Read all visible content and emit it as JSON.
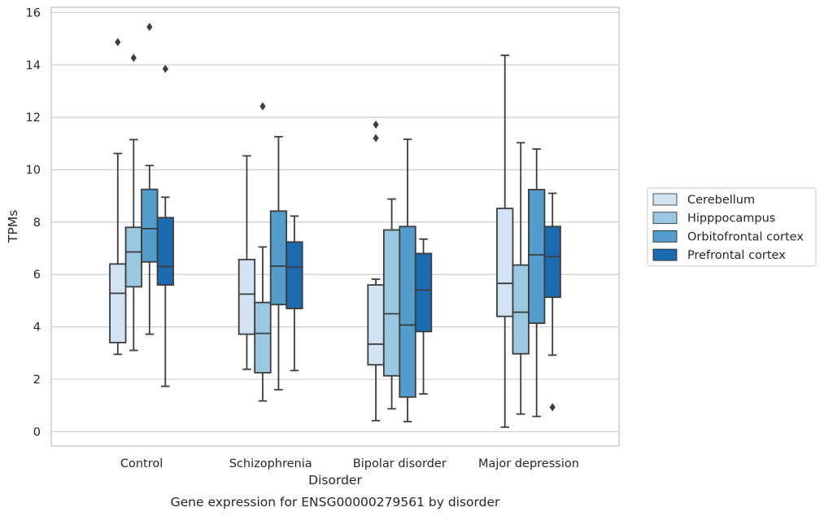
{
  "chart_data": {
    "type": "boxplot",
    "caption": "Gene expression for ENSG00000279561 by disorder",
    "xlabel": "Disorder",
    "ylabel": "TPMs",
    "ylim": [
      -0.55,
      16.2
    ],
    "yticks": [
      0,
      2,
      4,
      6,
      8,
      10,
      12,
      14,
      16
    ],
    "grid": "horizontal",
    "legend_placement": "right",
    "categories": [
      "Control",
      "Schizophrenia",
      "Bipolar disorder",
      "Major depression"
    ],
    "series": [
      {
        "name": "Cerebellum",
        "color": "#d2e3f3",
        "boxes": [
          {
            "whislo": 2.95,
            "q1": 3.4,
            "med": 5.28,
            "q3": 6.4,
            "whishi": 10.62,
            "fliers": [
              14.87
            ]
          },
          {
            "whislo": 2.38,
            "q1": 3.72,
            "med": 5.25,
            "q3": 6.57,
            "whishi": 10.53,
            "fliers": []
          },
          {
            "whislo": 0.42,
            "q1": 2.55,
            "med": 3.34,
            "q3": 5.6,
            "whishi": 5.82,
            "fliers": [
              11.72,
              11.21
            ]
          },
          {
            "whislo": 0.17,
            "q1": 4.4,
            "med": 5.66,
            "q3": 8.52,
            "whishi": 14.37,
            "fliers": []
          }
        ]
      },
      {
        "name": "Hipppocampus",
        "color": "#9ac8e0",
        "boxes": [
          {
            "whislo": 3.1,
            "q1": 5.53,
            "med": 6.86,
            "q3": 7.8,
            "whishi": 11.15,
            "fliers": [
              14.27
            ]
          },
          {
            "whislo": 1.17,
            "q1": 2.25,
            "med": 3.75,
            "q3": 4.93,
            "whishi": 7.05,
            "fliers": [
              12.42
            ]
          },
          {
            "whislo": 0.87,
            "q1": 2.13,
            "med": 4.5,
            "q3": 7.7,
            "whishi": 8.88,
            "fliers": []
          },
          {
            "whislo": 0.67,
            "q1": 2.97,
            "med": 4.56,
            "q3": 6.36,
            "whishi": 11.03,
            "fliers": []
          }
        ]
      },
      {
        "name": "Orbitofrontal cortex",
        "color": "#529dcc",
        "boxes": [
          {
            "whislo": 3.72,
            "q1": 6.48,
            "med": 7.75,
            "q3": 9.25,
            "whishi": 10.16,
            "fliers": [
              15.45
            ]
          },
          {
            "whislo": 1.6,
            "q1": 4.85,
            "med": 6.32,
            "q3": 8.42,
            "whishi": 11.26,
            "fliers": []
          },
          {
            "whislo": 0.38,
            "q1": 1.32,
            "med": 4.07,
            "q3": 7.83,
            "whishi": 11.16,
            "fliers": []
          },
          {
            "whislo": 0.58,
            "q1": 4.14,
            "med": 6.75,
            "q3": 9.24,
            "whishi": 10.79,
            "fliers": []
          }
        ]
      },
      {
        "name": "Prefrontal cortex",
        "color": "#1c6aaf",
        "boxes": [
          {
            "whislo": 1.73,
            "q1": 5.6,
            "med": 6.3,
            "q3": 8.17,
            "whishi": 8.95,
            "fliers": [
              13.85
            ]
          },
          {
            "whislo": 2.33,
            "q1": 4.7,
            "med": 6.28,
            "q3": 7.24,
            "whishi": 8.23,
            "fliers": []
          },
          {
            "whislo": 1.44,
            "q1": 3.82,
            "med": 5.4,
            "q3": 6.8,
            "whishi": 7.35,
            "fliers": []
          },
          {
            "whislo": 2.92,
            "q1": 5.13,
            "med": 6.68,
            "q3": 7.83,
            "whishi": 9.1,
            "fliers": [
              0.93
            ]
          }
        ]
      }
    ]
  }
}
